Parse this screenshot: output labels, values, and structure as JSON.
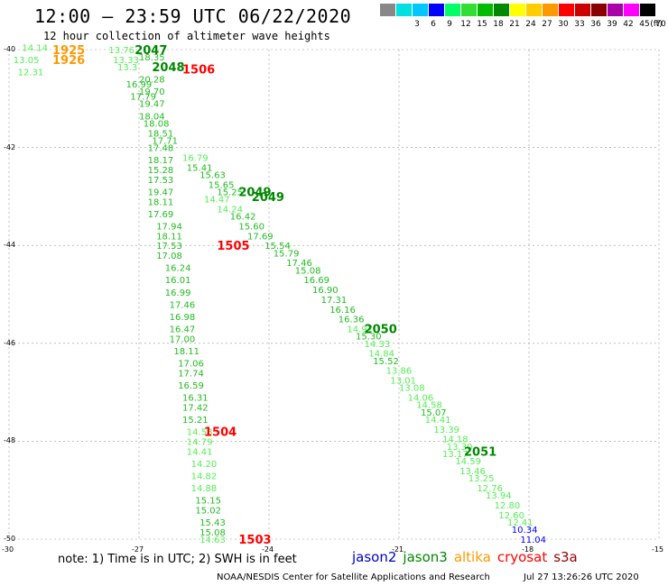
{
  "header": {
    "title": "12:00 – 23:59 UTC 06/22/2020",
    "subtitle": "12 hour collection of altimeter wave heights"
  },
  "legend": {
    "unit": "(ft)",
    "items": [
      {
        "label": "",
        "color": "#888888"
      },
      {
        "label": "3",
        "color": "#00e0e0"
      },
      {
        "label": "6",
        "color": "#00c8ff"
      },
      {
        "label": "9",
        "color": "#0000ff"
      },
      {
        "label": "12",
        "color": "#00ff66"
      },
      {
        "label": "15",
        "color": "#33dd33"
      },
      {
        "label": "18",
        "color": "#00bb00"
      },
      {
        "label": "21",
        "color": "#008800"
      },
      {
        "label": "24",
        "color": "#ffff00"
      },
      {
        "label": "27",
        "color": "#ffcc00"
      },
      {
        "label": "30",
        "color": "#ff9900"
      },
      {
        "label": "33",
        "color": "#ff0000"
      },
      {
        "label": "36",
        "color": "#cc0000"
      },
      {
        "label": "39",
        "color": "#880000"
      },
      {
        "label": "42",
        "color": "#aa00aa"
      },
      {
        "label": "45",
        "color": "#ff00ff"
      },
      {
        "label": "70",
        "color": "#000000"
      }
    ]
  },
  "axes": {
    "y_ticks": [
      "-40",
      "-42",
      "-44",
      "-46",
      "-48",
      "-50"
    ],
    "x_ticks": [
      "-30",
      "-27",
      "-24",
      "-21",
      "-18",
      "-15"
    ],
    "lon_range": [
      -30,
      -15
    ],
    "lat_range": [
      -50,
      -40
    ]
  },
  "map_data": {
    "track_labels": [
      {
        "text": "1925",
        "lon": -29.0,
        "lat": -40.0,
        "color": "#ff9900"
      },
      {
        "text": "1926",
        "lon": -29.0,
        "lat": -40.2,
        "color": "#ff9900"
      },
      {
        "text": "2047",
        "lon": -27.1,
        "lat": -40.0,
        "color": "#008800"
      },
      {
        "text": "2048",
        "lon": -26.7,
        "lat": -40.35,
        "color": "#008800"
      },
      {
        "text": "1506",
        "lon": -26.0,
        "lat": -40.4,
        "color": "#ff0000"
      },
      {
        "text": "2049",
        "lon": -24.7,
        "lat": -42.9,
        "color": "#008800"
      },
      {
        "text": "2049",
        "lon": -24.4,
        "lat": -43.0,
        "color": "#008800"
      },
      {
        "text": "1505",
        "lon": -25.2,
        "lat": -44.0,
        "color": "#ff0000"
      },
      {
        "text": "2050",
        "lon": -21.8,
        "lat": -45.7,
        "color": "#008800"
      },
      {
        "text": "1504",
        "lon": -25.5,
        "lat": -47.8,
        "color": "#ff0000"
      },
      {
        "text": "2051",
        "lon": -19.5,
        "lat": -48.2,
        "color": "#008800"
      },
      {
        "text": "1503",
        "lon": -24.7,
        "lat": -50.0,
        "color": "#ff0000"
      }
    ],
    "wave_heights": [
      {
        "v": "14.14",
        "lon": -29.7,
        "lat": -39.95,
        "c": "#55ee55"
      },
      {
        "v": "13.05",
        "lon": -29.9,
        "lat": -40.2,
        "c": "#55ee55"
      },
      {
        "v": "12.31",
        "lon": -29.8,
        "lat": -40.45,
        "c": "#55ee55"
      },
      {
        "v": "13.76",
        "lon": -27.7,
        "lat": -40.0,
        "c": "#55ee55"
      },
      {
        "v": "18.35",
        "lon": -27.0,
        "lat": -40.15,
        "c": "#22bb22"
      },
      {
        "v": "13.33",
        "lon": -27.6,
        "lat": -40.2,
        "c": "#55ee55"
      },
      {
        "v": "13.3",
        "lon": -27.5,
        "lat": -40.35,
        "c": "#55ee55"
      },
      {
        "v": "20.28",
        "lon": -27.0,
        "lat": -40.6,
        "c": "#22bb22"
      },
      {
        "v": "19.70",
        "lon": -27.0,
        "lat": -40.85,
        "c": "#22bb22"
      },
      {
        "v": "16.99",
        "lon": -27.3,
        "lat": -40.7,
        "c": "#22bb22"
      },
      {
        "v": "17.79",
        "lon": -27.2,
        "lat": -40.95,
        "c": "#22bb22"
      },
      {
        "v": "19.47",
        "lon": -27.0,
        "lat": -41.1,
        "c": "#22bb22"
      },
      {
        "v": "18.04",
        "lon": -27.0,
        "lat": -41.35,
        "c": "#22bb22"
      },
      {
        "v": "18.08",
        "lon": -26.9,
        "lat": -41.5,
        "c": "#22bb22"
      },
      {
        "v": "18.51",
        "lon": -26.8,
        "lat": -41.7,
        "c": "#22bb22"
      },
      {
        "v": "17.71",
        "lon": -26.7,
        "lat": -41.85,
        "c": "#22bb22"
      },
      {
        "v": "17.48",
        "lon": -26.8,
        "lat": -42.0,
        "c": "#22bb22"
      },
      {
        "v": "16.79",
        "lon": -26.0,
        "lat": -42.2,
        "c": "#55ee55"
      },
      {
        "v": "18.17",
        "lon": -26.8,
        "lat": -42.25,
        "c": "#22bb22"
      },
      {
        "v": "15.41",
        "lon": -25.9,
        "lat": -42.4,
        "c": "#22bb22"
      },
      {
        "v": "15.28",
        "lon": -26.8,
        "lat": -42.45,
        "c": "#22bb22"
      },
      {
        "v": "15.63",
        "lon": -25.6,
        "lat": -42.55,
        "c": "#22bb22"
      },
      {
        "v": "17.53",
        "lon": -26.8,
        "lat": -42.65,
        "c": "#22bb22"
      },
      {
        "v": "15.65",
        "lon": -25.4,
        "lat": -42.75,
        "c": "#22bb22"
      },
      {
        "v": "19.47",
        "lon": -26.8,
        "lat": -42.9,
        "c": "#22bb22"
      },
      {
        "v": "15.25",
        "lon": -25.2,
        "lat": -42.9,
        "c": "#22bb22"
      },
      {
        "v": "14.47",
        "lon": -25.5,
        "lat": -43.05,
        "c": "#55ee55"
      },
      {
        "v": "18.11",
        "lon": -26.8,
        "lat": -43.1,
        "c": "#22bb22"
      },
      {
        "v": "14.24",
        "lon": -25.2,
        "lat": -43.25,
        "c": "#55ee55"
      },
      {
        "v": "17.69",
        "lon": -26.8,
        "lat": -43.35,
        "c": "#22bb22"
      },
      {
        "v": "16.42",
        "lon": -24.9,
        "lat": -43.4,
        "c": "#22bb22"
      },
      {
        "v": "17.94",
        "lon": -26.6,
        "lat": -43.6,
        "c": "#22bb22"
      },
      {
        "v": "15.60",
        "lon": -24.7,
        "lat": -43.6,
        "c": "#22bb22"
      },
      {
        "v": "18.11",
        "lon": -26.6,
        "lat": -43.8,
        "c": "#22bb22"
      },
      {
        "v": "17.69",
        "lon": -24.5,
        "lat": -43.8,
        "c": "#22bb22"
      },
      {
        "v": "17.53",
        "lon": -26.6,
        "lat": -44.0,
        "c": "#22bb22"
      },
      {
        "v": "15.54",
        "lon": -24.1,
        "lat": -44.0,
        "c": "#22bb22"
      },
      {
        "v": "15.79",
        "lon": -23.9,
        "lat": -44.15,
        "c": "#22bb22"
      },
      {
        "v": "17.08",
        "lon": -26.6,
        "lat": -44.2,
        "c": "#22bb22"
      },
      {
        "v": "17.46",
        "lon": -23.6,
        "lat": -44.35,
        "c": "#22bb22"
      },
      {
        "v": "16.24",
        "lon": -26.4,
        "lat": -44.45,
        "c": "#22bb22"
      },
      {
        "v": "15.08",
        "lon": -23.4,
        "lat": -44.5,
        "c": "#22bb22"
      },
      {
        "v": "16.01",
        "lon": -26.4,
        "lat": -44.7,
        "c": "#22bb22"
      },
      {
        "v": "16.69",
        "lon": -23.2,
        "lat": -44.7,
        "c": "#22bb22"
      },
      {
        "v": "16.90",
        "lon": -23.0,
        "lat": -44.9,
        "c": "#22bb22"
      },
      {
        "v": "16.99",
        "lon": -26.4,
        "lat": -44.95,
        "c": "#22bb22"
      },
      {
        "v": "17.31",
        "lon": -22.8,
        "lat": -45.1,
        "c": "#22bb22"
      },
      {
        "v": "17.46",
        "lon": -26.3,
        "lat": -45.2,
        "c": "#22bb22"
      },
      {
        "v": "16.16",
        "lon": -22.6,
        "lat": -45.3,
        "c": "#22bb22"
      },
      {
        "v": "16.98",
        "lon": -26.3,
        "lat": -45.45,
        "c": "#22bb22"
      },
      {
        "v": "16.36",
        "lon": -22.4,
        "lat": -45.5,
        "c": "#22bb22"
      },
      {
        "v": "16.47",
        "lon": -26.3,
        "lat": -45.7,
        "c": "#22bb22"
      },
      {
        "v": "14.97",
        "lon": -22.2,
        "lat": -45.7,
        "c": "#55ee55"
      },
      {
        "v": "15.30",
        "lon": -22.0,
        "lat": -45.85,
        "c": "#22bb22"
      },
      {
        "v": "17.00",
        "lon": -26.3,
        "lat": -45.9,
        "c": "#22bb22"
      },
      {
        "v": "14.33",
        "lon": -21.8,
        "lat": -46.0,
        "c": "#55ee55"
      },
      {
        "v": "18.11",
        "lon": -26.2,
        "lat": -46.15,
        "c": "#22bb22"
      },
      {
        "v": "14.84",
        "lon": -21.7,
        "lat": -46.2,
        "c": "#55ee55"
      },
      {
        "v": "17.06",
        "lon": -26.1,
        "lat": -46.4,
        "c": "#22bb22"
      },
      {
        "v": "15.52",
        "lon": -21.6,
        "lat": -46.35,
        "c": "#22bb22"
      },
      {
        "v": "13.86",
        "lon": -21.3,
        "lat": -46.55,
        "c": "#55ee55"
      },
      {
        "v": "17.74",
        "lon": -26.1,
        "lat": -46.6,
        "c": "#22bb22"
      },
      {
        "v": "13.01",
        "lon": -21.2,
        "lat": -46.75,
        "c": "#55ee55"
      },
      {
        "v": "16.59",
        "lon": -26.1,
        "lat": -46.85,
        "c": "#22bb22"
      },
      {
        "v": "13.08",
        "lon": -21.0,
        "lat": -46.9,
        "c": "#55ee55"
      },
      {
        "v": "16.31",
        "lon": -26.0,
        "lat": -47.1,
        "c": "#22bb22"
      },
      {
        "v": "14.06",
        "lon": -20.8,
        "lat": -47.1,
        "c": "#55ee55"
      },
      {
        "v": "14.58",
        "lon": -20.6,
        "lat": -47.25,
        "c": "#55ee55"
      },
      {
        "v": "17.42",
        "lon": -26.0,
        "lat": -47.3,
        "c": "#22bb22"
      },
      {
        "v": "15.07",
        "lon": -20.5,
        "lat": -47.4,
        "c": "#22bb22"
      },
      {
        "v": "15.21",
        "lon": -26.0,
        "lat": -47.55,
        "c": "#22bb22"
      },
      {
        "v": "14.41",
        "lon": -20.4,
        "lat": -47.55,
        "c": "#55ee55"
      },
      {
        "v": "13.39",
        "lon": -20.2,
        "lat": -47.75,
        "c": "#55ee55"
      },
      {
        "v": "14.53",
        "lon": -25.9,
        "lat": -47.8,
        "c": "#55ee55"
      },
      {
        "v": "14.18",
        "lon": -20.0,
        "lat": -47.95,
        "c": "#55ee55"
      },
      {
        "v": "14.79",
        "lon": -25.9,
        "lat": -48.0,
        "c": "#55ee55"
      },
      {
        "v": "13.30",
        "lon": -19.9,
        "lat": -48.1,
        "c": "#55ee55"
      },
      {
        "v": "13.17",
        "lon": -20.0,
        "lat": -48.25,
        "c": "#55ee55"
      },
      {
        "v": "14.41",
        "lon": -25.9,
        "lat": -48.2,
        "c": "#55ee55"
      },
      {
        "v": "14.59",
        "lon": -19.7,
        "lat": -48.4,
        "c": "#55ee55"
      },
      {
        "v": "14.20",
        "lon": -25.8,
        "lat": -48.45,
        "c": "#55ee55"
      },
      {
        "v": "13.46",
        "lon": -19.6,
        "lat": -48.6,
        "c": "#55ee55"
      },
      {
        "v": "14.82",
        "lon": -25.8,
        "lat": -48.7,
        "c": "#55ee55"
      },
      {
        "v": "13.25",
        "lon": -19.4,
        "lat": -48.75,
        "c": "#55ee55"
      },
      {
        "v": "14.88",
        "lon": -25.8,
        "lat": -48.95,
        "c": "#55ee55"
      },
      {
        "v": "12.76",
        "lon": -19.2,
        "lat": -48.95,
        "c": "#55ee55"
      },
      {
        "v": "13.94",
        "lon": -19.0,
        "lat": -49.1,
        "c": "#55ee55"
      },
      {
        "v": "15.15",
        "lon": -25.7,
        "lat": -49.2,
        "c": "#22bb22"
      },
      {
        "v": "12.80",
        "lon": -18.8,
        "lat": -49.3,
        "c": "#55ee55"
      },
      {
        "v": "15.02",
        "lon": -25.7,
        "lat": -49.4,
        "c": "#22bb22"
      },
      {
        "v": "12.60",
        "lon": -18.7,
        "lat": -49.5,
        "c": "#55ee55"
      },
      {
        "v": "15.43",
        "lon": -25.6,
        "lat": -49.65,
        "c": "#22bb22"
      },
      {
        "v": "12.41",
        "lon": -18.5,
        "lat": -49.65,
        "c": "#55ee55"
      },
      {
        "v": "15.08",
        "lon": -25.6,
        "lat": -49.85,
        "c": "#22bb22"
      },
      {
        "v": "10.34",
        "lon": -18.4,
        "lat": -49.8,
        "c": "#0000ff"
      },
      {
        "v": "14.63",
        "lon": -25.6,
        "lat": -50.0,
        "c": "#55ee55"
      },
      {
        "v": "11.04",
        "lon": -18.2,
        "lat": -50.0,
        "c": "#0000ff"
      }
    ]
  },
  "footer": {
    "note": "note:  1) Time is in UTC;  2) SWH is in feet",
    "satellites": [
      {
        "name": "jason2",
        "color": "#0000cc"
      },
      {
        "name": "jason3",
        "color": "#008800"
      },
      {
        "name": "altika",
        "color": "#ff9900"
      },
      {
        "name": "cryosat",
        "color": "#ff0000"
      },
      {
        "name": "s3a",
        "color": "#990000"
      }
    ],
    "credit": "NOAA/NESDIS Center for Satellite Applications and Research",
    "timestamp": "Jul 27 13:26:26 UTC 2020"
  }
}
